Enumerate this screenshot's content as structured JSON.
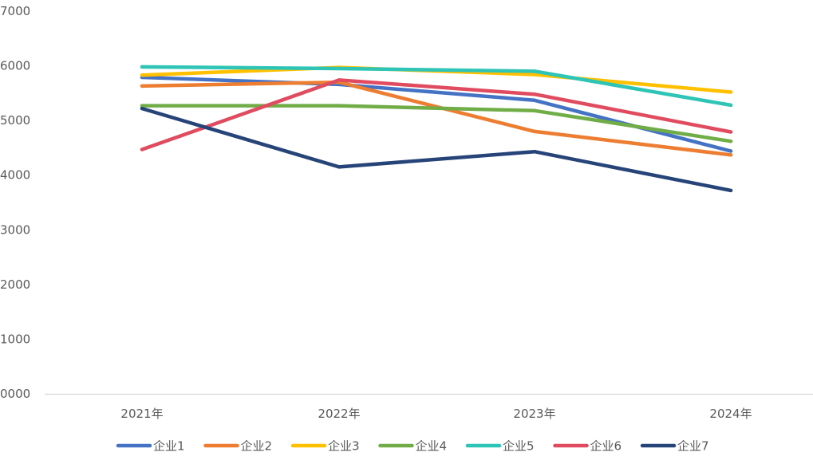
{
  "chart_data": {
    "type": "line",
    "categories": [
      "2021年",
      "2022年",
      "2023年",
      "2024年"
    ],
    "y_tick_labels": [
      "0000",
      "1000",
      "2000",
      "3000",
      "4000",
      "5000",
      "6000",
      "7000"
    ],
    "ylim": [
      0,
      7000
    ],
    "grid": false,
    "legend_position": "bottom",
    "series": [
      {
        "name": "企业1",
        "color": "#4472C4",
        "values": [
          5790,
          5660,
          5370,
          4440
        ]
      },
      {
        "name": "企业2",
        "color": "#ED7D31",
        "values": [
          5630,
          5700,
          4800,
          4370
        ]
      },
      {
        "name": "企业3",
        "color": "#FFC000",
        "values": [
          5830,
          5970,
          5840,
          5520
        ]
      },
      {
        "name": "企业4",
        "color": "#70AD47",
        "values": [
          5270,
          5270,
          5180,
          4620
        ]
      },
      {
        "name": "企业5",
        "color": "#2EC4B6",
        "values": [
          5980,
          5950,
          5900,
          5280
        ]
      },
      {
        "name": "企业6",
        "color": "#E04B5F",
        "values": [
          4470,
          5740,
          5480,
          4790
        ]
      },
      {
        "name": "企业7",
        "color": "#264478",
        "values": [
          5220,
          4150,
          4430,
          3720
        ]
      }
    ]
  }
}
